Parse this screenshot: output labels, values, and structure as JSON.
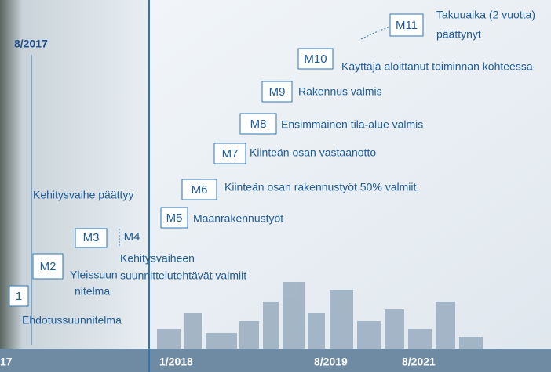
{
  "header": {
    "date_top": "8/2017"
  },
  "milestones": [
    {
      "code": "M11",
      "label": [
        "Takuuaika (2 vuotta)",
        "päättynyt"
      ]
    },
    {
      "code": "M10",
      "label": [
        "Käyttäjä aloittanut toiminnan kohteessa"
      ]
    },
    {
      "code": "M9",
      "label": [
        "Rakennus valmis"
      ]
    },
    {
      "code": "M8",
      "label": [
        "Ensimmäinen tila-alue valmis"
      ]
    },
    {
      "code": "M7",
      "label": [
        "Kiinteän osan vastaanotto"
      ]
    },
    {
      "code": "M6",
      "label": [
        "Kiinteän osan rakennustyöt 50% valmiit."
      ]
    },
    {
      "code": "M5",
      "label": [
        "Maanrakennustyöt"
      ]
    },
    {
      "code": "M4",
      "label": [
        "Kehitysvaiheen",
        "suunnittelutehtävät valmiit"
      ]
    },
    {
      "code": "M3",
      "label": []
    },
    {
      "code": "M2",
      "label": [
        "Yleissuun",
        "nitelma"
      ]
    },
    {
      "code": "1",
      "label": [
        "Ehdotussuunnitelma"
      ]
    }
  ],
  "phase_end": "Kehitysvaihe päättyy",
  "timeline": [
    "17",
    "1/2018",
    "8/2019",
    "8/2021"
  ]
}
